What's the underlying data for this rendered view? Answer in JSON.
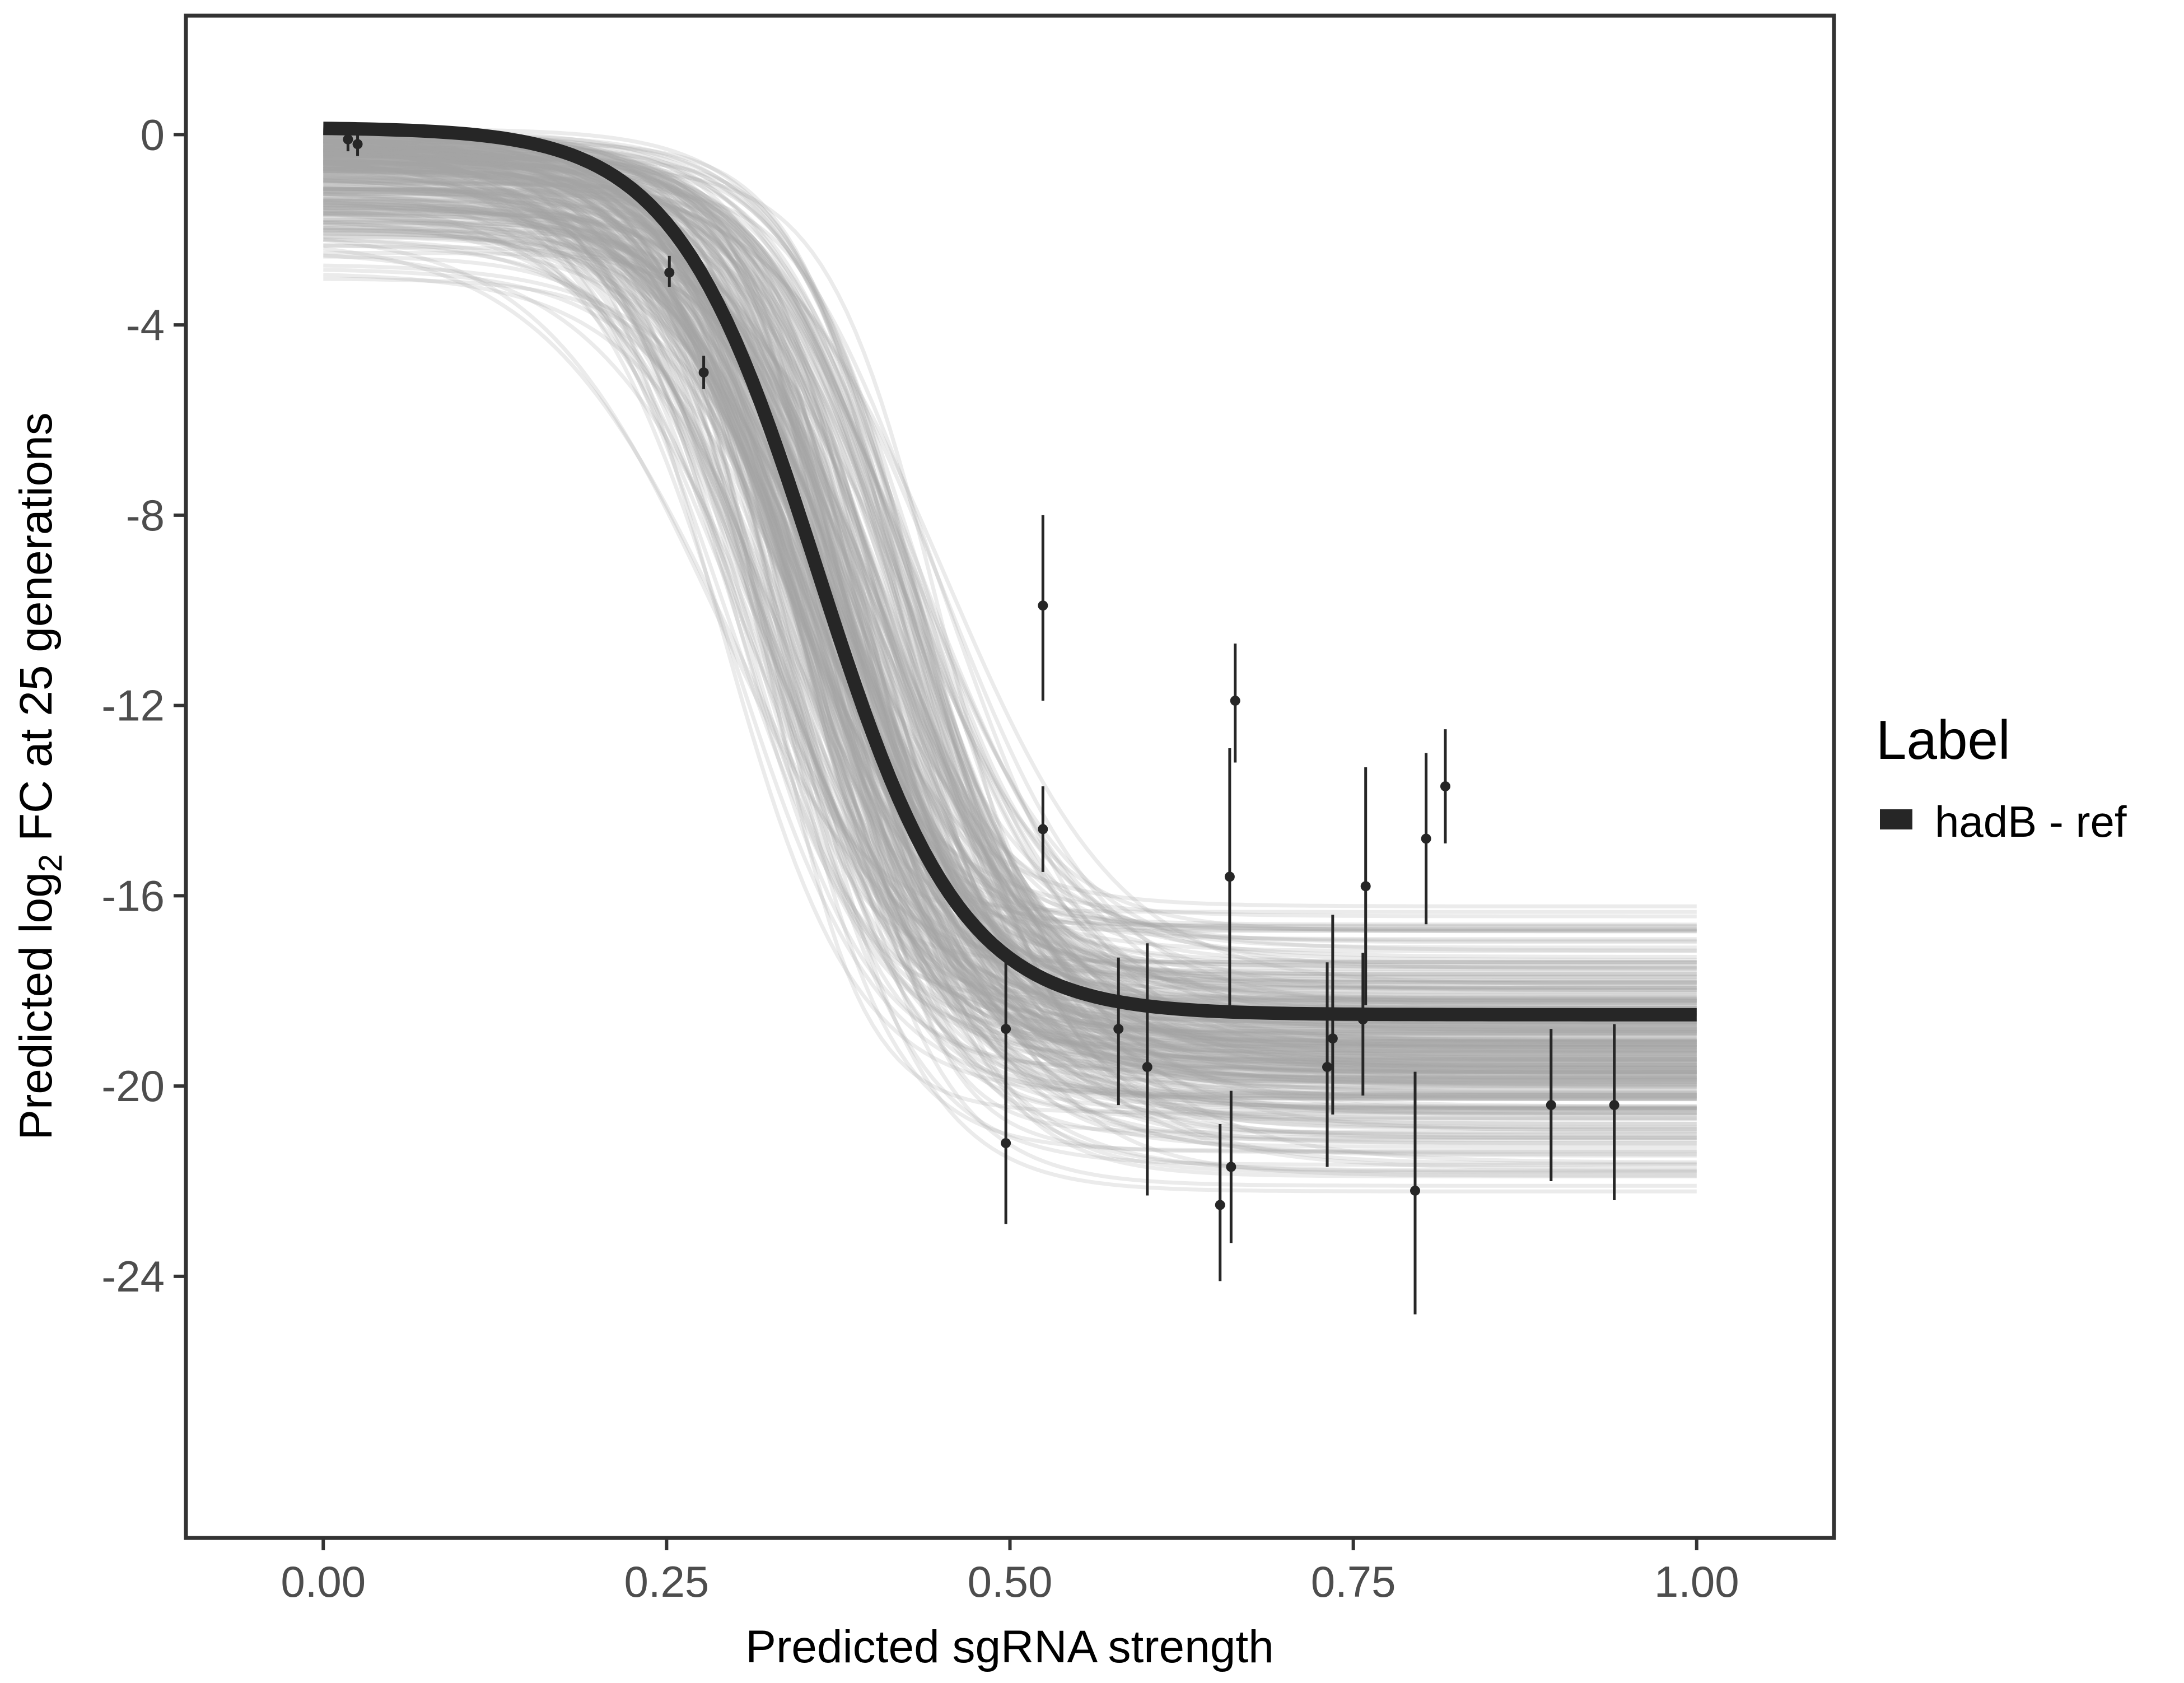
{
  "chart_data": {
    "type": "line",
    "xlabel": "Predicted sgRNA strength",
    "ylabel": {
      "prefix": "Predicted  log",
      "subscript": "2",
      "suffix": " FC at 25 generations"
    },
    "xlim": [
      -0.1,
      1.1
    ],
    "ylim": [
      -29.5,
      2.5
    ],
    "x_ticks": [
      0.0,
      0.25,
      0.5,
      0.75,
      1.0
    ],
    "x_tick_labels": [
      "0.00",
      "0.25",
      "0.50",
      "0.75",
      "1.00"
    ],
    "y_ticks": [
      0,
      -4,
      -8,
      -12,
      -16,
      -20,
      -24
    ],
    "y_tick_labels": [
      "0",
      "-4",
      "-8",
      "-12",
      "-16",
      "-20",
      "-24"
    ],
    "grid": false,
    "legend": {
      "position": "right",
      "title": "Label",
      "entries": [
        {
          "label": "hadB - ref",
          "color": "#262626"
        }
      ]
    },
    "fit": {
      "name": "hadB - ref",
      "model": "4-parameter logistic",
      "upper": 0.15,
      "lower": -18.5,
      "midpoint": 0.36,
      "slope": 0.052,
      "color": "#262626"
    },
    "posterior_draws": {
      "count": 300,
      "color": "#a6a6a6",
      "upper_range": [
        -3.5,
        0.15
      ],
      "lower_range": [
        -22.8,
        -15.5
      ],
      "midpoint_range": [
        0.28,
        0.46
      ],
      "slope_range": [
        0.03,
        0.075
      ]
    },
    "points": [
      {
        "x": 0.018,
        "y": -0.1,
        "ylo": -0.35,
        "yhi": 0.15
      },
      {
        "x": 0.025,
        "y": -0.2,
        "ylo": -0.45,
        "yhi": 0.05
      },
      {
        "x": 0.252,
        "y": -2.9,
        "ylo": -3.2,
        "yhi": -2.55
      },
      {
        "x": 0.277,
        "y": -5.0,
        "ylo": -5.35,
        "yhi": -4.65
      },
      {
        "x": 0.497,
        "y": -18.8,
        "ylo": -20.4,
        "yhi": -17.2
      },
      {
        "x": 0.497,
        "y": -21.2,
        "ylo": -22.9,
        "yhi": -19.6
      },
      {
        "x": 0.524,
        "y": -9.9,
        "ylo": -11.9,
        "yhi": -8.0
      },
      {
        "x": 0.524,
        "y": -14.6,
        "ylo": -15.5,
        "yhi": -13.7
      },
      {
        "x": 0.579,
        "y": -18.8,
        "ylo": -20.4,
        "yhi": -17.3
      },
      {
        "x": 0.6,
        "y": -19.6,
        "ylo": -22.3,
        "yhi": -17.0
      },
      {
        "x": 0.653,
        "y": -22.5,
        "ylo": -24.1,
        "yhi": -20.8
      },
      {
        "x": 0.66,
        "y": -15.6,
        "ylo": -18.3,
        "yhi": -12.9
      },
      {
        "x": 0.661,
        "y": -21.7,
        "ylo": -23.3,
        "yhi": -20.1
      },
      {
        "x": 0.664,
        "y": -11.9,
        "ylo": -13.2,
        "yhi": -10.7
      },
      {
        "x": 0.731,
        "y": -19.6,
        "ylo": -21.7,
        "yhi": -17.4
      },
      {
        "x": 0.735,
        "y": -19.0,
        "ylo": -20.6,
        "yhi": -16.4
      },
      {
        "x": 0.757,
        "y": -18.6,
        "ylo": -20.2,
        "yhi": -17.2
      },
      {
        "x": 0.759,
        "y": -15.8,
        "ylo": -18.3,
        "yhi": -13.3
      },
      {
        "x": 0.795,
        "y": -22.2,
        "ylo": -24.8,
        "yhi": -19.7
      },
      {
        "x": 0.803,
        "y": -14.8,
        "ylo": -16.6,
        "yhi": -13.0
      },
      {
        "x": 0.817,
        "y": -13.7,
        "ylo": -14.9,
        "yhi": -12.5
      },
      {
        "x": 0.894,
        "y": -20.4,
        "ylo": -22.0,
        "yhi": -18.8
      },
      {
        "x": 0.94,
        "y": -20.4,
        "ylo": -22.4,
        "yhi": -18.7
      }
    ]
  }
}
